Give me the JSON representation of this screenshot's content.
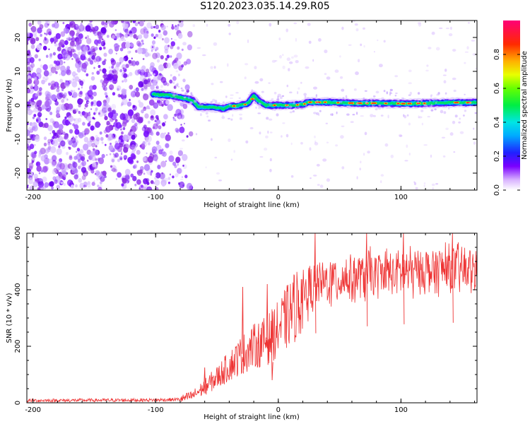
{
  "title": "S120.2023.035.14.29.R05",
  "colors": {
    "snr_line": "#ee3333",
    "scatter": "#8a2be2",
    "frame": "#000000"
  },
  "chart_data": [
    {
      "type": "heatmap",
      "name": "spectrogram",
      "xlabel": "Height of straight line (km)",
      "ylabel": "Frequency (Hz)",
      "xlim": [
        -205,
        162
      ],
      "ylim": [
        -25,
        25
      ],
      "xticks": [
        -200,
        -100,
        0,
        100
      ],
      "yticks": [
        20,
        10,
        0,
        -10,
        -20
      ],
      "colorbar": {
        "label": "Normalized spectral amplitude",
        "range": [
          0.0,
          1.0
        ],
        "ticks": [
          0.0,
          0.2,
          0.4,
          0.6,
          0.8
        ],
        "colormap": "rainbow (purple-blue-cyan-green-yellow-red-magenta)"
      },
      "features": {
        "noise_region_x": [
          -205,
          -85
        ],
        "signal_track": [
          [
            -100,
            3.2
          ],
          [
            -90,
            3.0
          ],
          [
            -80,
            2.3
          ],
          [
            -70,
            1.5
          ],
          [
            -65,
            -0.5
          ],
          [
            -55,
            -0.5
          ],
          [
            -45,
            -1.0
          ],
          [
            -40,
            -0.3
          ],
          [
            -30,
            0.0
          ],
          [
            -25,
            0.5
          ],
          [
            -20,
            2.8
          ],
          [
            -15,
            1.0
          ],
          [
            -10,
            0.0
          ],
          [
            0,
            0.0
          ],
          [
            10,
            0.0
          ],
          [
            20,
            0.3
          ],
          [
            25,
            0.9
          ],
          [
            40,
            0.9
          ],
          [
            60,
            0.6
          ],
          [
            80,
            0.6
          ],
          [
            100,
            0.5
          ],
          [
            120,
            0.6
          ],
          [
            140,
            0.8
          ],
          [
            162,
            0.8
          ]
        ]
      }
    },
    {
      "type": "line",
      "name": "snr",
      "xlabel": "Height of straight line (km)",
      "ylabel": "SNR (10 * v/v)",
      "xlim": [
        -205,
        162
      ],
      "ylim": [
        0,
        600
      ],
      "xticks": [
        -200,
        -100,
        0,
        100
      ],
      "yticks": [
        0,
        200,
        400,
        600
      ],
      "envelope": [
        [
          -205,
          8
        ],
        [
          -150,
          9
        ],
        [
          -100,
          10
        ],
        [
          -80,
          12
        ],
        [
          -70,
          25
        ],
        [
          -60,
          55
        ],
        [
          -50,
          90
        ],
        [
          -40,
          130
        ],
        [
          -30,
          170
        ],
        [
          -20,
          200
        ],
        [
          -10,
          220
        ],
        [
          0,
          260
        ],
        [
          10,
          320
        ],
        [
          20,
          380
        ],
        [
          30,
          410
        ],
        [
          40,
          430
        ],
        [
          60,
          445
        ],
        [
          80,
          455
        ],
        [
          100,
          462
        ],
        [
          120,
          470
        ],
        [
          140,
          472
        ],
        [
          162,
          470
        ]
      ],
      "spikes": [
        [
          -29,
          410
        ],
        [
          -16,
          230
        ],
        [
          -9,
          420
        ],
        [
          -5,
          80
        ],
        [
          -60,
          125
        ],
        [
          30,
          600
        ],
        [
          72,
          600
        ],
        [
          102,
          600
        ],
        [
          142,
          600
        ]
      ]
    }
  ]
}
